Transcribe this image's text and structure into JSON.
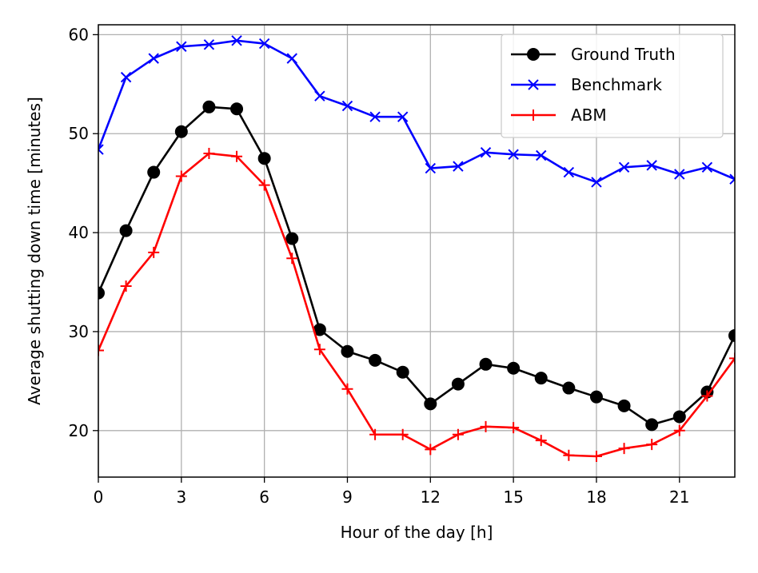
{
  "chart_data": {
    "type": "line",
    "title": "",
    "xlabel": "Hour of the day [h]",
    "ylabel": "Average shutting down time [minutes]",
    "xlim": [
      0,
      23
    ],
    "ylim": [
      15.3,
      61.0
    ],
    "xticks": [
      0,
      3,
      6,
      9,
      12,
      15,
      18,
      21
    ],
    "yticks": [
      20,
      30,
      40,
      50,
      60
    ],
    "grid": true,
    "legend_position": "top-right",
    "x": [
      0,
      1,
      2,
      3,
      4,
      5,
      6,
      7,
      8,
      9,
      10,
      11,
      12,
      13,
      14,
      15,
      16,
      17,
      18,
      19,
      20,
      21,
      22,
      23
    ],
    "series": [
      {
        "name": "Ground Truth",
        "color": "#000000",
        "marker": "circle",
        "values": [
          33.9,
          40.2,
          46.1,
          50.2,
          52.7,
          52.5,
          47.5,
          39.4,
          30.2,
          28.0,
          27.1,
          25.9,
          22.7,
          24.7,
          26.7,
          26.3,
          25.3,
          24.3,
          23.4,
          22.5,
          20.6,
          21.4,
          23.9,
          29.6
        ]
      },
      {
        "name": "Benchmark",
        "color": "#0000ff",
        "marker": "x",
        "values": [
          48.4,
          55.7,
          57.6,
          58.8,
          59.0,
          59.4,
          59.1,
          57.6,
          53.8,
          52.8,
          51.7,
          51.7,
          46.5,
          46.7,
          48.1,
          47.9,
          47.8,
          46.1,
          45.1,
          46.6,
          46.8,
          45.9,
          46.6,
          45.4
        ]
      },
      {
        "name": "ABM",
        "color": "#ff0000",
        "marker": "plus",
        "values": [
          28.1,
          34.6,
          38.0,
          45.7,
          48.0,
          47.7,
          44.8,
          37.4,
          28.2,
          24.2,
          19.6,
          19.6,
          18.1,
          19.6,
          20.4,
          20.3,
          19.0,
          17.5,
          17.4,
          18.2,
          18.6,
          20.0,
          23.5,
          27.3
        ]
      }
    ]
  }
}
